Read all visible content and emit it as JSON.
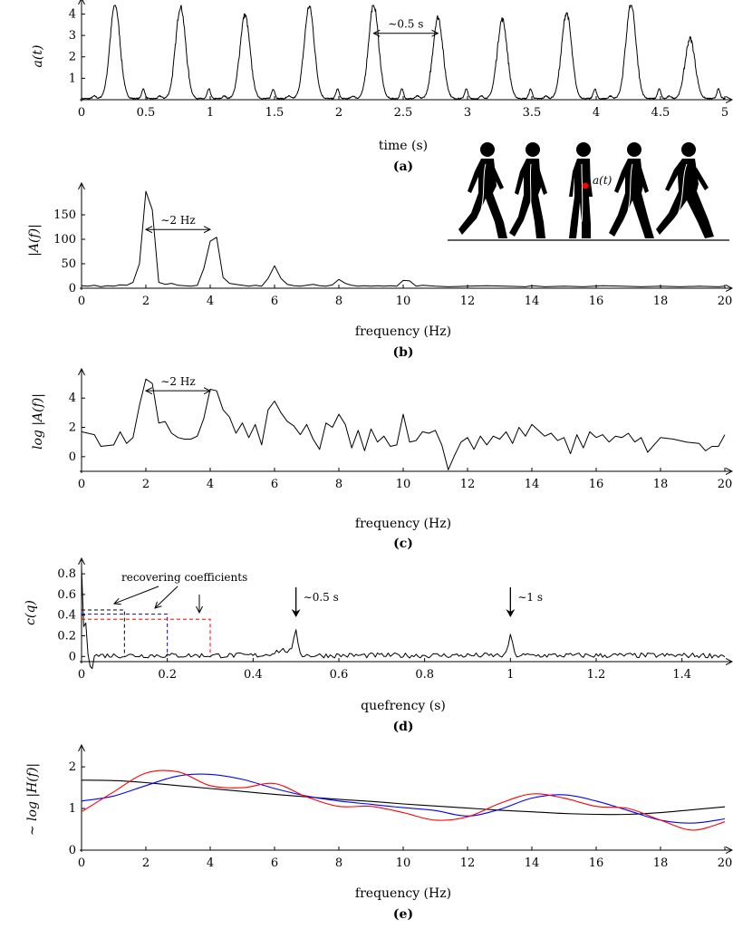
{
  "chart_data": [
    {
      "panel": "(a)",
      "type": "line",
      "xlabel": "time (s)",
      "ylabel": "a(t)",
      "xlim": [
        0,
        5
      ],
      "ylim": [
        0,
        4.4
      ],
      "xticks": [
        0,
        0.5,
        1,
        1.5,
        2,
        2.5,
        3,
        3.5,
        4,
        4.5,
        5
      ],
      "xtick_labels": [
        "0",
        "0.5",
        "1",
        "1.5",
        "2",
        "2.5",
        "3",
        "3.5",
        "4",
        "4.5",
        "5"
      ],
      "yticks": [
        1,
        2,
        3,
        4
      ],
      "ytick_labels": [
        "1",
        "2",
        "3",
        "4"
      ],
      "annotation": "∼0.5 s",
      "annotation_span": [
        2.27,
        2.77
      ],
      "peaks": [
        {
          "t": 0.26,
          "a": 4.4
        },
        {
          "t": 0.77,
          "a": 4.3
        },
        {
          "t": 1.27,
          "a": 3.9
        },
        {
          "t": 1.77,
          "a": 4.3
        },
        {
          "t": 2.27,
          "a": 4.4
        },
        {
          "t": 2.77,
          "a": 3.8
        },
        {
          "t": 3.27,
          "a": 3.7
        },
        {
          "t": 3.77,
          "a": 4.0
        },
        {
          "t": 4.27,
          "a": 4.4
        },
        {
          "t": 4.73,
          "a": 2.8
        }
      ]
    },
    {
      "panel": "(b)",
      "type": "line",
      "xlabel": "frequency (Hz)",
      "ylabel": "|A(f)|",
      "xlim": [
        0,
        20
      ],
      "ylim": [
        0,
        200
      ],
      "xticks": [
        0,
        2,
        4,
        6,
        8,
        10,
        12,
        14,
        16,
        18,
        20
      ],
      "xtick_labels": [
        "0",
        "2",
        "4",
        "6",
        "8",
        "10",
        "12",
        "14",
        "16",
        "18",
        "20"
      ],
      "yticks": [
        0,
        50,
        100,
        150
      ],
      "ytick_labels": [
        "0",
        "50",
        "100",
        "150"
      ],
      "annotation": "∼2 Hz",
      "annotation_span": [
        2,
        4
      ],
      "x": [
        0,
        0.2,
        0.4,
        0.6,
        0.8,
        1.0,
        1.2,
        1.4,
        1.6,
        1.8,
        2.0,
        2.2,
        2.4,
        2.6,
        2.8,
        3.0,
        3.2,
        3.4,
        3.6,
        3.8,
        4.0,
        4.2,
        4.4,
        4.6,
        4.8,
        5.0,
        5.2,
        5.4,
        5.6,
        5.8,
        6.0,
        6.2,
        6.4,
        6.6,
        6.8,
        7.0,
        7.2,
        7.4,
        7.6,
        7.8,
        8.0,
        8.2,
        8.4,
        8.6,
        8.8,
        9.0,
        9.2,
        9.4,
        9.6,
        9.8,
        10.0,
        10.2,
        10.4,
        10.6,
        10.8,
        11.0,
        11.4,
        12.0,
        12.6,
        13.2,
        13.8,
        14.0,
        14.4,
        15.0,
        15.6,
        16.2,
        16.8,
        17.4,
        18.0,
        18.6,
        19.2,
        19.8,
        20.0
      ],
      "y": [
        5,
        4,
        6,
        3,
        5,
        4,
        7,
        6,
        12,
        50,
        198,
        160,
        12,
        8,
        10,
        6,
        5,
        4,
        6,
        40,
        96,
        104,
        22,
        10,
        8,
        6,
        4,
        6,
        4,
        20,
        46,
        20,
        8,
        5,
        4,
        6,
        8,
        5,
        4,
        7,
        18,
        10,
        6,
        4,
        5,
        4,
        5,
        4,
        5,
        4,
        16,
        15,
        4,
        6,
        5,
        4,
        3,
        4,
        5,
        4,
        3,
        5,
        3,
        4,
        3,
        5,
        4,
        3,
        4,
        3,
        4,
        3,
        4
      ]
    },
    {
      "panel": "(c)",
      "type": "line",
      "xlabel": "frequency (Hz)",
      "ylabel": "log |A(f)|",
      "xlim": [
        0,
        20
      ],
      "ylim": [
        -1,
        5.5
      ],
      "xticks": [
        0,
        2,
        4,
        6,
        8,
        10,
        12,
        14,
        16,
        18,
        20
      ],
      "xtick_labels": [
        "0",
        "2",
        "4",
        "6",
        "8",
        "10",
        "12",
        "14",
        "16",
        "18",
        "20"
      ],
      "yticks": [
        0,
        2,
        4
      ],
      "ytick_labels": [
        "0",
        "2",
        "4"
      ],
      "annotation": "∼2 Hz",
      "annotation_span": [
        2,
        4
      ],
      "x": [
        0,
        0.4,
        0.6,
        1.0,
        1.2,
        1.4,
        1.6,
        1.8,
        2.0,
        2.2,
        2.4,
        2.6,
        2.8,
        3.0,
        3.2,
        3.4,
        3.6,
        3.8,
        4.0,
        4.2,
        4.4,
        4.6,
        4.8,
        5.0,
        5.2,
        5.4,
        5.6,
        5.8,
        6.0,
        6.2,
        6.4,
        6.6,
        6.8,
        7.0,
        7.2,
        7.4,
        7.6,
        7.8,
        8.0,
        8.2,
        8.4,
        8.6,
        8.8,
        9.0,
        9.2,
        9.4,
        9.6,
        9.8,
        10.0,
        10.2,
        10.4,
        10.6,
        10.8,
        11.0,
        11.2,
        11.4,
        11.6,
        11.8,
        12.0,
        12.2,
        12.4,
        12.6,
        12.8,
        13.0,
        13.2,
        13.4,
        13.6,
        13.8,
        14.0,
        14.2,
        14.4,
        14.6,
        14.8,
        15.0,
        15.2,
        15.4,
        15.6,
        15.8,
        16.0,
        16.2,
        16.4,
        16.6,
        16.8,
        17.0,
        17.2,
        17.4,
        17.6,
        18.0,
        18.4,
        18.8,
        19.2,
        19.4,
        19.6,
        19.8,
        20.0
      ],
      "y": [
        1.7,
        1.5,
        0.7,
        0.8,
        1.7,
        0.9,
        1.3,
        3.5,
        5.3,
        5.0,
        2.3,
        2.4,
        1.6,
        1.3,
        1.2,
        1.2,
        1.4,
        2.6,
        4.6,
        4.5,
        3.2,
        2.7,
        1.6,
        2.3,
        1.3,
        2.2,
        0.8,
        3.2,
        3.8,
        3.0,
        2.4,
        2.1,
        1.5,
        2.2,
        1.2,
        0.5,
        2.3,
        2.0,
        2.9,
        2.2,
        0.6,
        1.8,
        0.4,
        1.9,
        1.0,
        1.4,
        0.7,
        0.8,
        2.9,
        1.0,
        1.1,
        1.7,
        1.6,
        1.8,
        0.8,
        -0.9,
        0.1,
        1.0,
        1.3,
        0.5,
        1.4,
        0.8,
        1.4,
        1.2,
        1.7,
        0.9,
        2.0,
        1.4,
        2.2,
        1.8,
        1.4,
        1.6,
        1.1,
        1.3,
        0.2,
        1.5,
        0.6,
        1.7,
        1.3,
        1.5,
        1.0,
        1.4,
        1.3,
        1.6,
        1.0,
        1.3,
        0.3,
        1.3,
        1.2,
        1.0,
        0.9,
        0.4,
        0.7,
        0.7,
        1.5
      ]
    },
    {
      "panel": "(d)",
      "type": "line",
      "xlabel": "quefrency (s)",
      "ylabel": "c(q)",
      "xlim": [
        0,
        1.5
      ],
      "ylim": [
        -0.05,
        0.88
      ],
      "xticks": [
        0,
        0.2,
        0.4,
        0.6,
        0.8,
        1,
        1.2,
        1.4
      ],
      "xtick_labels": [
        "0",
        "0.2",
        "0.4",
        "0.6",
        "0.8",
        "1",
        "1.2",
        "1.4"
      ],
      "yticks": [
        0,
        0.2,
        0.4,
        0.6,
        0.8
      ],
      "ytick_labels": [
        "0",
        "0.2",
        "0.4",
        "0.6",
        "0.8"
      ],
      "annotation_recovering": "recovering coefficients",
      "annotation_half_second": "∼0.5 s",
      "annotation_one_second": "∼1 s",
      "cutoffs": [
        {
          "q": 0.1,
          "level": 0.45,
          "color": "#000000"
        },
        {
          "q": 0.2,
          "level": 0.41,
          "color": "#0000ff"
        },
        {
          "q": 0.3,
          "level": 0.36,
          "color": "#ff0000"
        }
      ],
      "peaks": [
        {
          "q": 0.5,
          "c": 0.24
        },
        {
          "q": 1.0,
          "c": 0.21
        }
      ]
    },
    {
      "panel": "(e)",
      "type": "line",
      "xlabel": "frequency (Hz)",
      "ylabel": "∼ log |H(f)|",
      "xlim": [
        0,
        20
      ],
      "ylim": [
        0,
        2.35
      ],
      "xticks": [
        0,
        2,
        4,
        6,
        8,
        10,
        12,
        14,
        16,
        18,
        20
      ],
      "xtick_labels": [
        "0",
        "2",
        "4",
        "6",
        "8",
        "10",
        "12",
        "14",
        "16",
        "18",
        "20"
      ],
      "yticks": [
        0,
        1,
        2
      ],
      "ytick_labels": [
        "0",
        "1",
        "2"
      ],
      "series": [
        {
          "color": "#000000",
          "x": [
            0,
            1,
            2,
            3,
            4,
            5,
            6,
            7,
            8,
            9,
            10,
            11,
            12,
            13,
            14,
            15,
            16,
            17,
            18,
            19,
            20
          ],
          "y": [
            1.68,
            1.67,
            1.62,
            1.55,
            1.48,
            1.41,
            1.34,
            1.28,
            1.22,
            1.17,
            1.11,
            1.06,
            1.01,
            0.96,
            0.92,
            0.88,
            0.86,
            0.86,
            0.9,
            0.97,
            1.04
          ]
        },
        {
          "color": "#0000ff",
          "x": [
            0,
            1,
            2,
            3,
            4,
            5,
            6,
            7,
            8,
            9,
            10,
            11,
            12,
            13,
            14,
            15,
            16,
            17,
            18,
            19,
            20
          ],
          "y": [
            1.18,
            1.3,
            1.55,
            1.78,
            1.82,
            1.7,
            1.48,
            1.3,
            1.18,
            1.1,
            1.02,
            0.95,
            0.82,
            0.98,
            1.25,
            1.33,
            1.18,
            0.95,
            0.72,
            0.65,
            0.75
          ]
        },
        {
          "color": "#ff0000",
          "x": [
            0,
            1,
            2,
            3,
            4,
            5,
            6,
            7,
            8,
            9,
            10,
            11,
            12,
            13,
            14,
            15,
            16,
            17,
            18,
            19,
            20
          ],
          "y": [
            0.92,
            1.4,
            1.85,
            1.88,
            1.55,
            1.5,
            1.6,
            1.28,
            1.05,
            1.05,
            0.9,
            0.72,
            0.8,
            1.12,
            1.35,
            1.25,
            1.05,
            1.0,
            0.72,
            0.48,
            0.68
          ]
        }
      ]
    }
  ],
  "illustration": {
    "label": "a(t)",
    "figures": [
      "walker-1",
      "walker-2",
      "walker-3",
      "walker-4",
      "walker-5"
    ],
    "sensor_color": "#ff0000"
  }
}
